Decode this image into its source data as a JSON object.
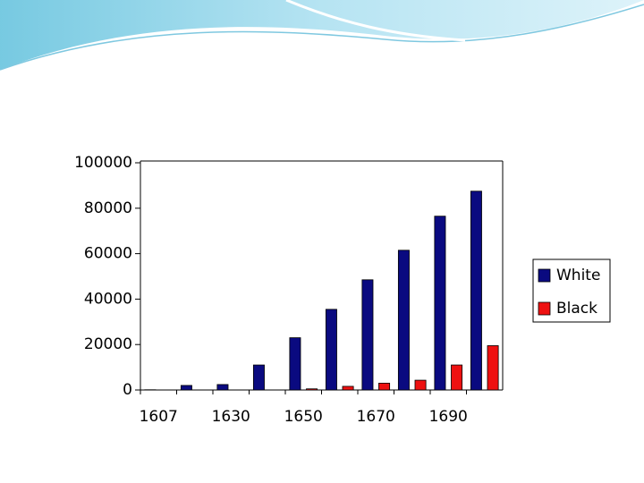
{
  "chart_data": {
    "type": "bar",
    "categories": [
      "1607",
      null,
      "1630",
      null,
      "1650",
      null,
      "1670",
      null,
      "1690",
      null
    ],
    "series": [
      {
        "name": "White",
        "color": "#0a0a80",
        "values": [
          100,
          2000,
          2400,
          11000,
          23000,
          35500,
          48500,
          61500,
          76500,
          87500
        ]
      },
      {
        "name": "Black",
        "color": "#ee1111",
        "values": [
          0,
          0,
          0,
          0,
          500,
          1600,
          3000,
          4300,
          11000,
          19500
        ]
      }
    ],
    "ylim": [
      0,
      100000
    ],
    "yticks": [
      0,
      20000,
      40000,
      60000,
      80000,
      100000
    ],
    "legend": "right"
  }
}
